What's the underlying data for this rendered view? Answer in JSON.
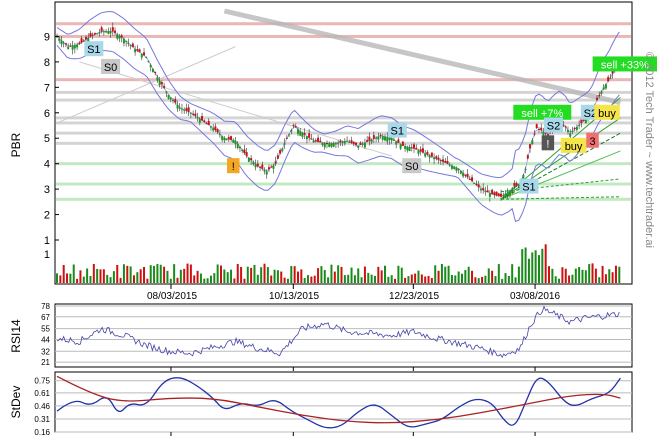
{
  "chart_data": [
    {
      "type": "candlestick",
      "ylabel": "PBR",
      "ylim": [
        1.0,
        10.0
      ],
      "yticks": [
        1,
        2,
        3,
        4,
        5,
        6,
        7,
        8,
        9
      ],
      "xlabels": [
        "08/03/2015",
        "10/13/2015",
        "12/23/2015",
        "03/08/2016"
      ],
      "watermark": "© 2012 Tech Trader ~ www.techtrader.ai",
      "close_path": [
        [
          0,
          9.0
        ],
        [
          10,
          8.6
        ],
        [
          20,
          8.7
        ],
        [
          30,
          9.0
        ],
        [
          40,
          9.2
        ],
        [
          50,
          9.2
        ],
        [
          60,
          8.9
        ],
        [
          70,
          8.5
        ],
        [
          80,
          8.2
        ],
        [
          90,
          7.4
        ],
        [
          100,
          6.7
        ],
        [
          110,
          6.2
        ],
        [
          120,
          6.0
        ],
        [
          130,
          5.7
        ],
        [
          140,
          5.4
        ],
        [
          150,
          5.0
        ],
        [
          160,
          4.9
        ],
        [
          170,
          4.3
        ],
        [
          180,
          3.9
        ],
        [
          188,
          3.7
        ],
        [
          196,
          4.0
        ],
        [
          204,
          4.8
        ],
        [
          212,
          5.5
        ],
        [
          220,
          5.2
        ],
        [
          230,
          4.9
        ],
        [
          240,
          4.8
        ],
        [
          250,
          4.8
        ],
        [
          260,
          4.9
        ],
        [
          270,
          4.7
        ],
        [
          280,
          4.9
        ],
        [
          290,
          5.1
        ],
        [
          300,
          5.0
        ],
        [
          310,
          4.7
        ],
        [
          320,
          4.6
        ],
        [
          330,
          4.4
        ],
        [
          340,
          4.2
        ],
        [
          350,
          4.0
        ],
        [
          360,
          3.8
        ],
        [
          370,
          3.4
        ],
        [
          380,
          3.0
        ],
        [
          390,
          2.8
        ],
        [
          398,
          2.7
        ],
        [
          405,
          2.9
        ],
        [
          410,
          3.1
        ],
        [
          415,
          3.2
        ],
        [
          420,
          3.8
        ],
        [
          425,
          4.8
        ],
        [
          430,
          5.4
        ],
        [
          435,
          5.3
        ],
        [
          440,
          5.1
        ],
        [
          445,
          5.4
        ],
        [
          450,
          5.6
        ],
        [
          455,
          5.5
        ],
        [
          460,
          5.2
        ],
        [
          465,
          5.4
        ],
        [
          470,
          5.6
        ],
        [
          475,
          5.8
        ],
        [
          480,
          6.1
        ],
        [
          485,
          6.6
        ],
        [
          490,
          7.0
        ],
        [
          495,
          7.3
        ],
        [
          500,
          7.7
        ],
        [
          505,
          8.0
        ]
      ],
      "volume_axis_label": "1",
      "horizontal_levels": [
        {
          "y": 9.5,
          "color": "#d97a7a"
        },
        {
          "y": 9.0,
          "color": "#d97a7a"
        },
        {
          "y": 7.3,
          "color": "#d97a7a"
        },
        {
          "y": 6.8,
          "color": "#b0b0b0"
        },
        {
          "y": 6.5,
          "color": "#b0b0b0"
        },
        {
          "y": 5.8,
          "color": "#b0b0b0"
        },
        {
          "y": 5.6,
          "color": "#b0b0b0"
        },
        {
          "y": 5.2,
          "color": "#b0b0b0"
        },
        {
          "y": 4.8,
          "color": "#b0b0b0"
        },
        {
          "y": 4.0,
          "color": "#8fd98f"
        },
        {
          "y": 3.2,
          "color": "#8fd98f"
        },
        {
          "y": 2.6,
          "color": "#8fd98f"
        }
      ],
      "annotations": [
        {
          "label": "S1",
          "x": 33,
          "y": 8.5,
          "bg": "#a8d8ea",
          "fg": "#000000"
        },
        {
          "label": "S0",
          "x": 48,
          "y": 7.8,
          "bg": "#c8c8c8",
          "fg": "#000000"
        },
        {
          "label": "!",
          "x": 158,
          "y": 3.9,
          "bg": "#f5a623",
          "fg": "#000000"
        },
        {
          "label": "S1",
          "x": 305,
          "y": 5.3,
          "bg": "#a8d8ea",
          "fg": "#000000"
        },
        {
          "label": "S0",
          "x": 318,
          "y": 3.9,
          "bg": "#c8c8c8",
          "fg": "#000000"
        },
        {
          "label": "S1",
          "x": 423,
          "y": 3.1,
          "bg": "#a8d8ea",
          "fg": "#000000"
        },
        {
          "label": "sell +7%",
          "x": 435,
          "y": 6.0,
          "bg": "#22dd22",
          "fg": "#ffffff"
        },
        {
          "label": "S2",
          "x": 445,
          "y": 5.5,
          "bg": "#a8d8ea",
          "fg": "#000000"
        },
        {
          "label": "!",
          "x": 440,
          "y": 4.8,
          "bg": "#555555",
          "fg": "#ffffff"
        },
        {
          "label": "buy",
          "x": 463,
          "y": 4.7,
          "bg": "#f5e44a",
          "fg": "#000000"
        },
        {
          "label": "3",
          "x": 480,
          "y": 4.9,
          "bg": "#f07070",
          "fg": "#000000"
        },
        {
          "label": "S2",
          "x": 478,
          "y": 6.0,
          "bg": "#a8d8ea",
          "fg": "#000000"
        },
        {
          "label": "buy",
          "x": 493,
          "y": 6.0,
          "bg": "#f5e44a",
          "fg": "#000000"
        },
        {
          "label": "sell +33%",
          "x": 509,
          "y": 7.9,
          "bg": "#22dd22",
          "fg": "#ffffff"
        }
      ]
    },
    {
      "type": "line",
      "ylabel": "RSI14",
      "ylim": [
        16,
        80
      ],
      "yticks": [
        78,
        67,
        55,
        44,
        32,
        21
      ],
      "series_shape": [
        [
          0,
          45
        ],
        [
          20,
          42
        ],
        [
          40,
          55
        ],
        [
          60,
          48
        ],
        [
          80,
          38
        ],
        [
          100,
          32
        ],
        [
          120,
          30
        ],
        [
          140,
          36
        ],
        [
          160,
          42
        ],
        [
          180,
          35
        ],
        [
          200,
          30
        ],
        [
          220,
          55
        ],
        [
          240,
          60
        ],
        [
          260,
          52
        ],
        [
          280,
          50
        ],
        [
          300,
          48
        ],
        [
          320,
          52
        ],
        [
          340,
          45
        ],
        [
          360,
          40
        ],
        [
          380,
          35
        ],
        [
          400,
          28
        ],
        [
          415,
          35
        ],
        [
          425,
          60
        ],
        [
          435,
          75
        ],
        [
          445,
          70
        ],
        [
          460,
          62
        ],
        [
          475,
          66
        ],
        [
          490,
          68
        ],
        [
          505,
          70
        ]
      ]
    },
    {
      "type": "line",
      "ylabel": "StDev",
      "ylim": [
        0.16,
        0.85
      ],
      "yticks": [
        0.75,
        0.61,
        0.46,
        0.31,
        0.16
      ],
      "series": [
        {
          "color": "#2233aa",
          "points": [
            [
              0,
              0.4
            ],
            [
              15,
              0.55
            ],
            [
              30,
              0.45
            ],
            [
              45,
              0.6
            ],
            [
              55,
              0.35
            ],
            [
              65,
              0.5
            ],
            [
              80,
              0.45
            ],
            [
              95,
              0.75
            ],
            [
              110,
              0.8
            ],
            [
              125,
              0.7
            ],
            [
              140,
              0.55
            ],
            [
              150,
              0.4
            ],
            [
              165,
              0.5
            ],
            [
              180,
              0.45
            ],
            [
              195,
              0.55
            ],
            [
              210,
              0.4
            ],
            [
              225,
              0.3
            ],
            [
              240,
              0.2
            ],
            [
              255,
              0.22
            ],
            [
              270,
              0.4
            ],
            [
              285,
              0.5
            ],
            [
              300,
              0.35
            ],
            [
              315,
              0.2
            ],
            [
              330,
              0.25
            ],
            [
              345,
              0.3
            ],
            [
              360,
              0.45
            ],
            [
              375,
              0.55
            ],
            [
              390,
              0.5
            ],
            [
              400,
              0.3
            ],
            [
              410,
              0.2
            ],
            [
              420,
              0.5
            ],
            [
              430,
              0.8
            ],
            [
              440,
              0.75
            ],
            [
              455,
              0.5
            ],
            [
              465,
              0.45
            ],
            [
              480,
              0.55
            ],
            [
              495,
              0.6
            ],
            [
              505,
              0.78
            ]
          ]
        },
        {
          "color": "#aa2222",
          "points": [
            [
              0,
              0.8
            ],
            [
              30,
              0.6
            ],
            [
              60,
              0.5
            ],
            [
              100,
              0.55
            ],
            [
              140,
              0.55
            ],
            [
              180,
              0.45
            ],
            [
              220,
              0.35
            ],
            [
              260,
              0.28
            ],
            [
              300,
              0.26
            ],
            [
              340,
              0.3
            ],
            [
              380,
              0.38
            ],
            [
              420,
              0.48
            ],
            [
              460,
              0.58
            ],
            [
              490,
              0.6
            ],
            [
              505,
              0.55
            ]
          ]
        }
      ]
    }
  ]
}
